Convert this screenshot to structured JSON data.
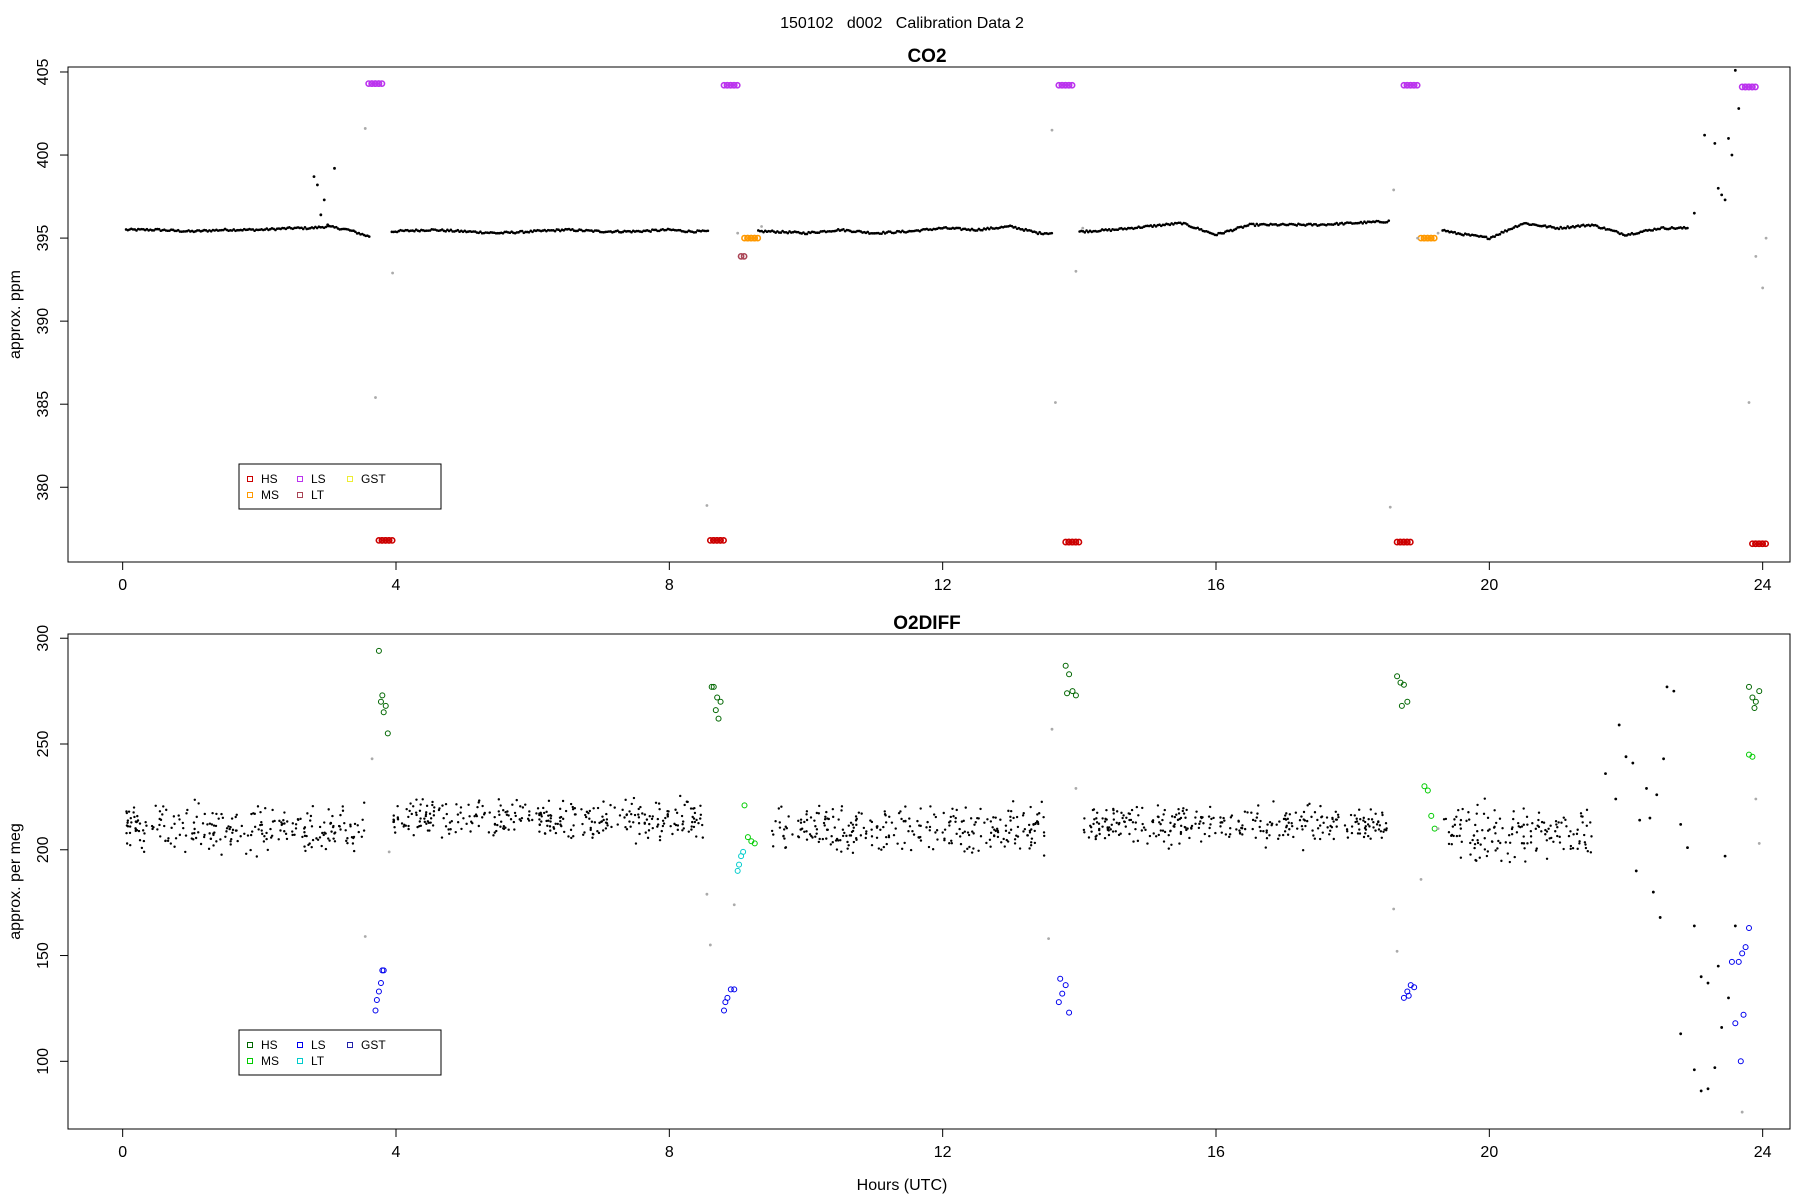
{
  "page_title": "150102   d002   Calibration Data 2",
  "xlabel": "Hours (UTC)",
  "colors": {
    "HS": "#cc0000",
    "MS": "#ff9900",
    "LS": "#bb33ee",
    "LT": "#aa4455",
    "GST": "#eeee33",
    "HS2": "#006600",
    "MS2": "#00cc00",
    "LS2": "#0000ee",
    "LT2": "#00cccc",
    "GST2": "#2222aa",
    "ambient": "#000000",
    "excluded": "#aaaaaa"
  },
  "chart_data": [
    {
      "type": "scatter",
      "title": "CO2",
      "ylabel": "approx. ppm",
      "xlabel": "",
      "xlim": [
        -0.8,
        24.4
      ],
      "ylim": [
        375.5,
        405.3
      ],
      "xticks": [
        0,
        4,
        8,
        12,
        16,
        20,
        24
      ],
      "yticks": [
        380,
        385,
        390,
        395,
        400,
        405
      ],
      "legend": {
        "position": "lower-left",
        "entries": [
          {
            "label": "HS",
            "color_key": "HS"
          },
          {
            "label": "MS",
            "color_key": "MS"
          },
          {
            "label": "LS",
            "color_key": "LS"
          },
          {
            "label": "LT",
            "color_key": "LT"
          },
          {
            "label": "GST",
            "color_key": "GST"
          }
        ]
      },
      "series": [
        {
          "role": "ambient",
          "color_key": "ambient",
          "x": [
            0.05,
            0.5,
            1.0,
            1.5,
            2.0,
            2.5,
            2.75,
            3.0,
            3.3,
            3.6,
            3.95,
            4.5,
            5.0,
            5.5,
            6.0,
            6.5,
            7.0,
            7.5,
            8.0,
            8.3,
            8.55,
            9.5,
            10.0,
            10.5,
            11.0,
            11.5,
            12.0,
            12.5,
            13.0,
            13.4,
            13.65,
            14.05,
            14.5,
            15.0,
            15.5,
            16.0,
            16.5,
            17.0,
            17.5,
            18.0,
            18.5,
            18.7,
            19.5,
            20.0,
            20.5,
            21.0,
            21.5,
            22.0,
            22.5,
            22.9
          ],
          "y": [
            395.5,
            395.5,
            395.4,
            395.5,
            395.5,
            395.6,
            395.6,
            395.7,
            395.5,
            395.1,
            395.4,
            395.5,
            395.4,
            395.3,
            395.4,
            395.5,
            395.4,
            395.4,
            395.5,
            395.4,
            395.4,
            395.4,
            395.3,
            395.5,
            395.3,
            395.4,
            395.6,
            395.5,
            395.7,
            395.3,
            395.3,
            395.4,
            395.5,
            395.7,
            395.9,
            395.2,
            395.8,
            395.8,
            395.8,
            395.9,
            396.0,
            396.1,
            395.3,
            395.0,
            395.9,
            395.6,
            395.8,
            395.2,
            395.6,
            395.6
          ]
        },
        {
          "role": "ambient-scatter",
          "color_key": "ambient",
          "x": [
            2.8,
            2.85,
            2.9,
            2.95,
            3.1,
            3.0,
            23.15,
            23.3,
            23.4,
            23.5,
            23.55,
            23.6,
            23.65,
            23.45,
            23.35,
            23.0
          ],
          "y": [
            398.7,
            398.2,
            396.4,
            397.3,
            399.2,
            395.8,
            401.2,
            400.7,
            397.6,
            401.0,
            400.0,
            405.1,
            402.8,
            397.3,
            398.0,
            396.5
          ]
        },
        {
          "role": "HS",
          "color_key": "HS",
          "x": [
            3.75,
            3.8,
            3.85,
            3.9,
            8.6,
            8.65,
            8.7,
            8.75,
            13.8,
            13.85,
            13.9,
            13.95,
            18.65,
            18.7,
            18.75,
            18.8,
            23.85,
            23.9,
            23.95,
            24.0
          ],
          "y": [
            376.8,
            376.8,
            376.8,
            376.8,
            376.8,
            376.8,
            376.8,
            376.8,
            376.7,
            376.7,
            376.7,
            376.7,
            376.7,
            376.7,
            376.7,
            376.7,
            376.6,
            376.6,
            376.6,
            376.6
          ]
        },
        {
          "role": "MS",
          "color_key": "MS",
          "x": [
            9.1,
            9.15,
            9.2,
            9.25,
            19.0,
            19.05,
            19.1,
            19.15
          ],
          "y": [
            395.0,
            395.0,
            395.0,
            395.0,
            395.0,
            395.0,
            395.0,
            395.0
          ]
        },
        {
          "role": "LS",
          "color_key": "LS",
          "x": [
            3.6,
            3.65,
            3.7,
            3.75,
            8.8,
            8.85,
            8.9,
            8.95,
            13.7,
            13.75,
            13.8,
            13.85,
            18.75,
            18.8,
            18.85,
            18.9,
            23.7,
            23.75,
            23.8,
            23.85
          ],
          "y": [
            404.3,
            404.3,
            404.3,
            404.3,
            404.2,
            404.2,
            404.2,
            404.2,
            404.2,
            404.2,
            404.2,
            404.2,
            404.2,
            404.2,
            404.2,
            404.2,
            404.1,
            404.1,
            404.1,
            404.1
          ]
        },
        {
          "role": "LT",
          "color_key": "LT",
          "x": [
            9.05
          ],
          "y": [
            393.9
          ]
        },
        {
          "role": "excluded",
          "color_key": "excluded",
          "x": [
            3.55,
            3.7,
            3.95,
            8.55,
            9.0,
            9.35,
            13.6,
            13.65,
            13.95,
            14.05,
            18.55,
            18.6,
            18.95,
            19.25,
            23.8,
            24.0,
            23.9,
            24.05
          ],
          "y": [
            401.6,
            385.4,
            392.9,
            378.9,
            395.3,
            395.7,
            401.5,
            385.1,
            393.0,
            395.6,
            378.8,
            397.9,
            395.0,
            395.3,
            385.1,
            392.0,
            393.9,
            395.0
          ]
        }
      ]
    },
    {
      "type": "scatter",
      "title": "O2DIFF",
      "ylabel": "approx. per meg",
      "xlabel": "Hours (UTC)",
      "xlim": [
        -0.8,
        24.4
      ],
      "ylim": [
        68,
        302
      ],
      "xticks": [
        0,
        4,
        8,
        12,
        16,
        20,
        24
      ],
      "yticks": [
        100,
        150,
        200,
        250,
        300
      ],
      "legend": {
        "position": "lower-left",
        "entries": [
          {
            "label": "HS",
            "color_key": "HS2"
          },
          {
            "label": "MS",
            "color_key": "MS2"
          },
          {
            "label": "LS",
            "color_key": "LS2"
          },
          {
            "label": "LT",
            "color_key": "LT2"
          },
          {
            "label": "GST",
            "color_key": "GST2"
          }
        ]
      },
      "series": [
        {
          "role": "ambient-band",
          "color_key": "ambient",
          "segments": [
            [
              0.05,
              3.55,
              210,
              8
            ],
            [
              3.95,
              8.5,
              214,
              7
            ],
            [
              9.5,
              13.5,
              210,
              8
            ],
            [
              14.05,
              18.5,
              212,
              7
            ],
            [
              19.3,
              21.5,
              208,
              9
            ]
          ]
        },
        {
          "role": "ambient-scatter",
          "color_key": "ambient",
          "x": [
            21.7,
            21.9,
            22.0,
            22.1,
            22.2,
            22.3,
            22.4,
            22.5,
            22.6,
            22.7,
            22.8,
            22.9,
            23.0,
            23.1,
            23.2,
            23.3,
            23.4,
            23.5,
            23.6,
            23.2,
            23.0,
            22.8,
            23.1,
            23.35,
            22.45,
            22.55,
            21.85,
            22.15,
            22.35,
            23.45
          ],
          "y": [
            236,
            259,
            244,
            241,
            214,
            229,
            180,
            168,
            277,
            275,
            212,
            201,
            164,
            140,
            137,
            97,
            116,
            130,
            164,
            87,
            96,
            113,
            86,
            145,
            226,
            243,
            224,
            190,
            215,
            197
          ]
        },
        {
          "role": "HS",
          "color_key": "HS2",
          "x": [
            3.75,
            3.8,
            3.85,
            3.82,
            3.88,
            3.78,
            8.65,
            8.7,
            8.72,
            8.75,
            8.68,
            8.62,
            13.8,
            13.85,
            13.9,
            13.95,
            13.82,
            18.65,
            18.7,
            18.75,
            18.8,
            18.72,
            23.8,
            23.85,
            23.9,
            23.95,
            23.88
          ],
          "y": [
            294,
            273,
            268,
            265,
            255,
            270,
            277,
            272,
            262,
            270,
            266,
            277,
            287,
            283,
            275,
            273,
            274,
            282,
            279,
            278,
            270,
            268,
            277,
            272,
            270,
            275,
            267
          ]
        },
        {
          "role": "MS",
          "color_key": "MS2",
          "x": [
            9.1,
            9.15,
            9.2,
            9.25,
            19.05,
            19.1,
            19.15,
            19.2,
            23.8,
            23.85
          ],
          "y": [
            221,
            206,
            204,
            203,
            230,
            228,
            216,
            210,
            245,
            244
          ]
        },
        {
          "role": "LS",
          "color_key": "LS2",
          "x": [
            3.7,
            3.72,
            3.75,
            3.78,
            3.8,
            3.82,
            8.8,
            8.85,
            8.9,
            8.95,
            8.82,
            13.7,
            13.75,
            13.8,
            13.85,
            13.72,
            18.75,
            18.8,
            18.85,
            18.9,
            18.82,
            23.55,
            23.6,
            23.65,
            23.7,
            23.75,
            23.8,
            23.72,
            23.68
          ],
          "y": [
            124,
            129,
            133,
            137,
            143,
            143,
            124,
            130,
            134,
            134,
            128,
            128,
            132,
            136,
            123,
            139,
            130,
            133,
            136,
            135,
            131,
            147,
            118,
            147,
            151,
            154,
            163,
            122,
            100
          ]
        },
        {
          "role": "LT",
          "color_key": "LT2",
          "x": [
            9.0,
            9.02,
            9.05,
            9.08
          ],
          "y": [
            190,
            193,
            197,
            199
          ]
        },
        {
          "role": "excluded",
          "color_key": "excluded",
          "x": [
            3.55,
            3.65,
            3.9,
            8.55,
            8.6,
            8.95,
            13.55,
            13.6,
            13.95,
            18.6,
            18.65,
            19.0,
            19.25,
            23.7,
            23.9,
            23.95
          ],
          "y": [
            159,
            243,
            199,
            179,
            155,
            174,
            158,
            257,
            229,
            172,
            152,
            186,
            210,
            76,
            224,
            203
          ]
        }
      ]
    }
  ]
}
